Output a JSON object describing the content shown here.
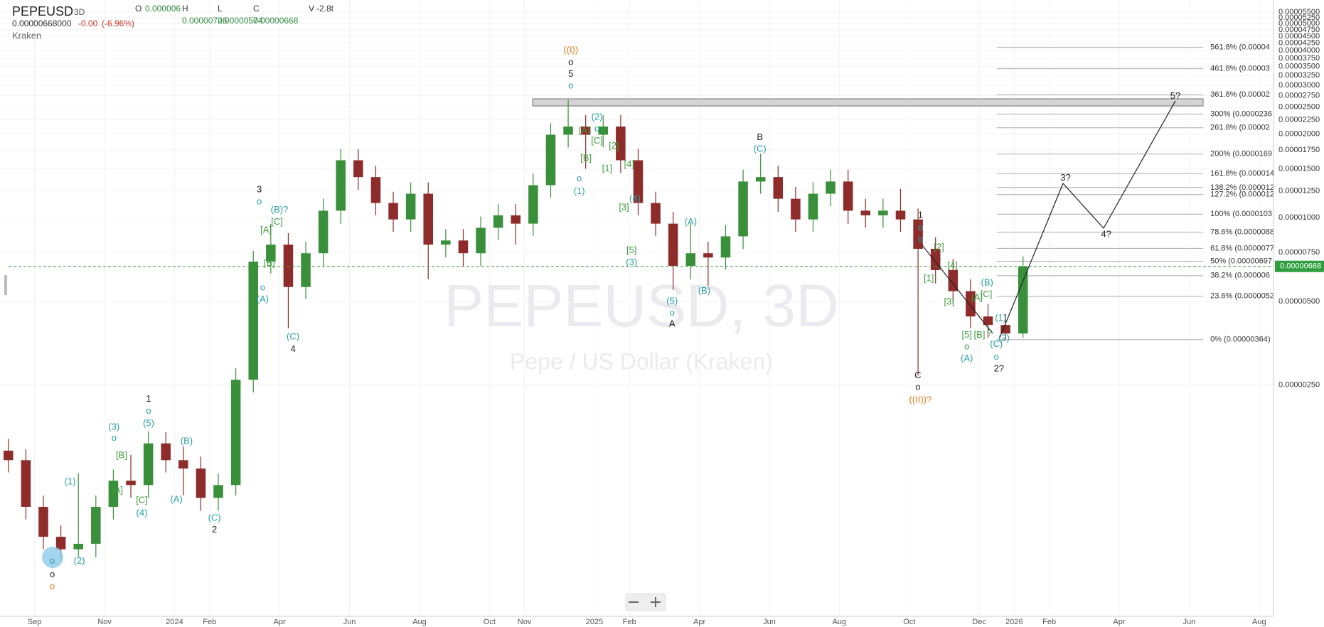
{
  "header": {
    "symbol": "PEPEUSD",
    "interval": "3D",
    "price": "0.00000668000",
    "change": "-0.00",
    "change_pct": "(-6.96%)",
    "exchange": "Kraken",
    "o_label": "O",
    "o_value": "0.000006",
    "h_label": "H",
    "h_value": "0.00000726",
    "l_label": "L",
    "l_value": "0.00000574",
    "c_label": "C",
    "c_value": "0.00000668",
    "v_label": "V",
    "v_value": "-2.8t"
  },
  "chart_data": {
    "type": "candlestick",
    "watermark": "PEPEUSD, 3D",
    "watermark_subtitle": "Pepe / US Dollar (Kraken)",
    "log_scale": true,
    "grid": true,
    "up_color": "#3a8f3a",
    "down_color": "#8e2b2b",
    "xlim": [
      -0.99,
      35.41
    ],
    "ylim": [
      3.94e-07,
      6.08e-05
    ],
    "xticks": [
      {
        "value": 0,
        "label": "Sep"
      },
      {
        "value": 2,
        "label": "Nov"
      },
      {
        "value": 4,
        "label": "2024"
      },
      {
        "value": 5,
        "label": "Feb"
      },
      {
        "value": 7,
        "label": "Apr"
      },
      {
        "value": 9,
        "label": "Jun"
      },
      {
        "value": 11,
        "label": "Aug"
      },
      {
        "value": 13,
        "label": "Oct"
      },
      {
        "value": 14,
        "label": "Nov"
      },
      {
        "value": 16,
        "label": "2025"
      },
      {
        "value": 17,
        "label": "Feb"
      },
      {
        "value": 19,
        "label": "Apr"
      },
      {
        "value": 21,
        "label": "Jun"
      },
      {
        "value": 23,
        "label": "Aug"
      },
      {
        "value": 25,
        "label": "Oct"
      },
      {
        "value": 27,
        "label": "Dec"
      },
      {
        "value": 28,
        "label": "2026"
      },
      {
        "value": 29,
        "label": "Feb"
      },
      {
        "value": 31,
        "label": "Apr"
      },
      {
        "value": 33,
        "label": "Jun"
      },
      {
        "value": 35,
        "label": "Aug"
      }
    ],
    "yticks": [
      {
        "value": 5.5e-05,
        "label": "0.00005500"
      },
      {
        "value": 5.25e-05,
        "label": "0.00005250"
      },
      {
        "value": 5e-05,
        "label": "0.00005000"
      },
      {
        "value": 4.75e-05,
        "label": "0.00004750"
      },
      {
        "value": 4.5e-05,
        "label": "0.00004500"
      },
      {
        "value": 4.25e-05,
        "label": "0.00004250"
      },
      {
        "value": 4e-05,
        "label": "0.00004000"
      },
      {
        "value": 3.75e-05,
        "label": "0.00003750"
      },
      {
        "value": 3.5e-05,
        "label": "0.00003500"
      },
      {
        "value": 3.25e-05,
        "label": "0.00003250"
      },
      {
        "value": 3e-05,
        "label": "0.00003000"
      },
      {
        "value": 2.75e-05,
        "label": "0.00002750"
      },
      {
        "value": 2.5e-05,
        "label": "0.00002500"
      },
      {
        "value": 2.25e-05,
        "label": "0.00002250"
      },
      {
        "value": 2e-05,
        "label": "0.00002000"
      },
      {
        "value": 1.75e-05,
        "label": "0.00001750"
      },
      {
        "value": 1.5e-05,
        "label": "0.00001500"
      },
      {
        "value": 1.25e-05,
        "label": "0.00001250"
      },
      {
        "value": 1e-05,
        "label": "0.00001000"
      },
      {
        "value": 7.5e-06,
        "label": "0.00000750"
      },
      {
        "value": 5e-06,
        "label": "0.00000500"
      },
      {
        "value": 2.5e-06,
        "label": "0.00000250"
      }
    ],
    "last_price": 6.68e-06,
    "last_price_label": "0.00000668",
    "x": [
      -0.75,
      -0.25,
      0.25,
      0.75,
      1.25,
      1.75,
      2.25,
      2.75,
      3.25,
      3.75,
      4.25,
      4.75,
      5.25,
      5.75,
      6.25,
      6.75,
      7.25,
      7.75,
      8.25,
      8.75,
      9.25,
      9.75,
      10.25,
      10.75,
      11.25,
      11.75,
      12.25,
      12.75,
      13.25,
      13.75,
      14.25,
      14.75,
      15.25,
      15.75,
      16.25,
      16.75,
      17.25,
      17.75,
      18.25,
      18.75,
      19.25,
      19.75,
      20.25,
      20.75,
      21.25,
      21.75,
      22.25,
      22.75,
      23.25,
      23.75,
      24.25,
      24.75,
      25.25,
      25.75,
      26.25,
      26.75,
      27.25,
      27.75,
      28.25
    ],
    "open": [
      1.45e-06,
      1.34e-06,
      9.1e-07,
      7.1e-07,
      6.4e-07,
      6.7e-07,
      9.1e-07,
      1.13e-06,
      1.09e-06,
      1.54e-06,
      1.34e-06,
      1.25e-06,
      9.8e-07,
      1.09e-06,
      2.61e-06,
      6.95e-06,
      8e-06,
      5.63e-06,
      7.45e-06,
      1.06e-05,
      1.61e-05,
      1.4e-05,
      1.13e-05,
      9.86e-06,
      1.22e-05,
      8e-06,
      8.28e-06,
      7.45e-06,
      9.2e-06,
      1.02e-05,
      9.52e-06,
      1.31e-05,
      1.99e-05,
      2.13e-05,
      1.99e-05,
      2.13e-05,
      1.61e-05,
      1.13e-05,
      9.52e-06,
      6.71e-06,
      7.45e-06,
      7.19e-06,
      8.57e-06,
      1.35e-05,
      1.4e-05,
      1.17e-05,
      9.86e-06,
      1.22e-05,
      1.35e-05,
      1.06e-05,
      1.02e-05,
      1.06e-05,
      9.86e-06,
      7.73e-06,
      6.48e-06,
      5.44e-06,
      4.41e-06,
      4.11e-06,
      3.83e-06
    ],
    "high": [
      1.6e-06,
      1.47e-06,
      1e-06,
      7.8e-07,
      1.2e-06,
      1e-06,
      1.24e-06,
      1.4e-06,
      1.7e-06,
      1.69e-06,
      1.5e-06,
      1.38e-06,
      1.2e-06,
      2.87e-06,
      7.6e-06,
      9.5e-06,
      8.8e-06,
      8.2e-06,
      1.17e-05,
      1.77e-05,
      1.77e-05,
      1.54e-05,
      1.24e-05,
      1.34e-05,
      1.34e-05,
      9.1e-06,
      9.1e-06,
      1.01e-05,
      1.12e-05,
      1.12e-05,
      1.44e-05,
      2.19e-05,
      2.66e-05,
      2.34e-05,
      2.34e-05,
      2.34e-05,
      1.77e-05,
      1.24e-05,
      1.05e-05,
      9.6e-06,
      8.2e-06,
      9.4e-06,
      1.49e-05,
      1.7e-05,
      1.54e-05,
      1.29e-05,
      1.34e-05,
      1.49e-05,
      1.49e-05,
      1.17e-05,
      1.17e-05,
      1.27e-05,
      1.08e-05,
      8.5e-06,
      7.1e-06,
      6e-06,
      4.9e-06,
      4.5e-06,
      7.26e-06
    ],
    "low": [
      1.21e-06,
      8.2e-07,
      6.4e-07,
      5.8e-07,
      6e-07,
      6e-07,
      8.2e-07,
      9.8e-07,
      9.8e-07,
      1.21e-06,
      1e-06,
      8.8e-07,
      8.8e-07,
      1e-06,
      2.35e-06,
      6.3e-06,
      4e-06,
      5.1e-06,
      6.7e-06,
      9.5e-06,
      1.26e-05,
      1.02e-05,
      8.9e-06,
      8.9e-06,
      6e-06,
      7.2e-06,
      6.7e-06,
      6.7e-06,
      8.3e-06,
      8e-06,
      8.6e-06,
      1.18e-05,
      1.79e-05,
      1.5e-05,
      1.79e-05,
      1.45e-05,
      1.02e-05,
      8.6e-06,
      5.5e-06,
      6e-06,
      5.7e-06,
      6.5e-06,
      7.7e-06,
      1.22e-05,
      1.05e-05,
      8.9e-06,
      8.9e-06,
      1.1e-05,
      9.5e-06,
      9.2e-06,
      9.2e-06,
      8.9e-06,
      2.7e-06,
      5.8e-06,
      4.9e-06,
      4e-06,
      3.7e-06,
      3.64e-06,
      3.7e-06
    ],
    "close": [
      1.34e-06,
      9.1e-07,
      7.1e-07,
      6.4e-07,
      6.7e-07,
      9.1e-07,
      1.13e-06,
      1.09e-06,
      1.54e-06,
      1.34e-06,
      1.25e-06,
      9.8e-07,
      1.09e-06,
      2.61e-06,
      6.95e-06,
      8e-06,
      5.63e-06,
      7.45e-06,
      1.06e-05,
      1.61e-05,
      1.4e-05,
      1.13e-05,
      9.86e-06,
      1.22e-05,
      8e-06,
      8.28e-06,
      7.45e-06,
      9.2e-06,
      1.02e-05,
      9.52e-06,
      1.31e-05,
      1.99e-05,
      2.13e-05,
      1.99e-05,
      2.13e-05,
      1.61e-05,
      1.13e-05,
      9.52e-06,
      6.71e-06,
      7.45e-06,
      7.19e-06,
      8.57e-06,
      1.35e-05,
      1.4e-05,
      1.17e-05,
      9.86e-06,
      1.22e-05,
      1.35e-05,
      1.06e-05,
      1.02e-05,
      1.06e-05,
      9.86e-06,
      7.73e-06,
      6.48e-06,
      5.44e-06,
      4.41e-06,
      4.11e-06,
      3.83e-06,
      6.68e-06
    ],
    "fib_levels": [
      {
        "value": 4.106e-05,
        "label": "561.8% (0.00004"
      },
      {
        "value": 3.44e-05,
        "label": "461.8% (0.00003"
      },
      {
        "value": 2.774e-05,
        "label": "361.8% (0.00002"
      },
      {
        "value": 2.362e-05,
        "label": "300% (0.0000236"
      },
      {
        "value": 2.108e-05,
        "label": "261.8% (0.00002"
      },
      {
        "value": 1.696e-05,
        "label": "200% (0.0000169"
      },
      {
        "value": 1.442e-05,
        "label": "161.8% (0.000014"
      },
      {
        "value": 1.284e-05,
        "label": "138.2% (0.000012"
      },
      {
        "value": 1.211e-05,
        "label": "127.2% (0.000012"
      },
      {
        "value": 1.03e-05,
        "label": "100% (0.0000103"
      },
      {
        "value": 8.875e-06,
        "label": "78.6% (0.0000088"
      },
      {
        "value": 7.756e-06,
        "label": "61.8% (0.0000077"
      },
      {
        "value": 6.97e-06,
        "label": "50% (0.00000697"
      },
      {
        "value": 6.184e-06,
        "label": "38.2% (0.000006"
      },
      {
        "value": 5.212e-06,
        "label": "23.6% (0.0000052"
      },
      {
        "value": 3.64e-06,
        "label": "0% (0.00000364)"
      }
    ],
    "annotations": [
      "o",
      "o",
      "o",
      "(2)",
      "(1)",
      "(3)",
      "o",
      "[B]",
      "[A]",
      "1",
      "o",
      "(5)",
      "[C]",
      "(4)",
      "(B)",
      "(A)",
      "(C)",
      "2",
      "3",
      "o",
      "(B)?",
      "[C]",
      "[A]",
      "[B]",
      "o",
      "(A)",
      "(C)",
      "4",
      "((I))",
      "o",
      "5",
      "o",
      "(2)",
      "o",
      "[C]",
      "[A]",
      "[2]",
      "[B]",
      "[1]",
      "[4]",
      "o",
      "(1)",
      "[3]",
      "(4)",
      "[5]",
      "(3)",
      "(A)",
      "(5)",
      "o",
      "A",
      "(B)",
      "B",
      "(C)",
      "1",
      "o",
      "o",
      "[2]",
      "[1]",
      "[4]",
      "[3]",
      "(B)",
      "[A]",
      "[C]",
      "[5]",
      "[B]",
      "?",
      "o",
      "(A)",
      "(1)",
      "(2)",
      "(C)",
      "o",
      "2?",
      "C",
      "o",
      "((II))?",
      "3?",
      "4?",
      "5?"
    ]
  }
}
